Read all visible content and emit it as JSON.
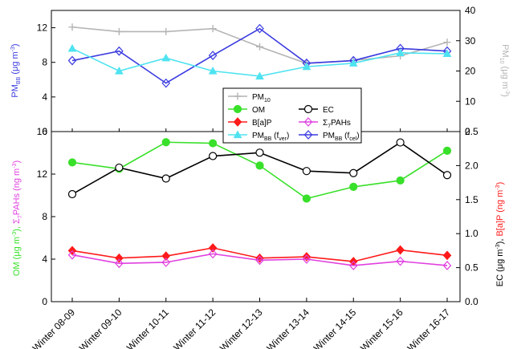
{
  "chart_data": [
    {
      "type": "line",
      "panel": "top",
      "categories": [
        "Winter 08-09",
        "Winter 09-10",
        "Winter 10-11",
        "Winter 11-12",
        "Winter 12-13",
        "Winter 13-14",
        "Winter 14-15",
        "Winter 15-16",
        "Winter 16-17"
      ],
      "left_axis": {
        "label": "PMBB (μg m-3)",
        "label_parts": [
          "PM",
          "BB",
          " (μg m",
          "-3",
          ")"
        ],
        "ylim": [
          0,
          14
        ],
        "ticks": [
          "0",
          "4",
          "8",
          "12"
        ],
        "tick_values": [
          0,
          4,
          8,
          12
        ],
        "color": "#3a3ae0"
      },
      "right_axis": {
        "label": "PM10 (μg m-3)",
        "label_parts": [
          "PM",
          "10",
          " (μg m",
          "-3",
          ")"
        ],
        "ylim": [
          0,
          40
        ],
        "ticks": [
          "0",
          "10",
          "20",
          "30",
          "40"
        ],
        "tick_values": [
          0,
          10,
          20,
          30,
          40
        ],
        "color": "#b4b4b4"
      },
      "series": [
        {
          "name": "PM10",
          "name_parts": [
            "PM",
            "10",
            ""
          ],
          "axis": "right",
          "color": "#b4b4b4",
          "marker": "plus",
          "values": [
            34.5,
            33,
            33,
            34,
            28,
            22.5,
            23.5,
            25,
            29.5
          ]
        },
        {
          "name": "PMBB (fcel)",
          "name_parts": [
            "PM",
            "BB",
            " (f",
            "cel",
            ")"
          ],
          "axis": "left",
          "color": "#3a3ae0",
          "marker": "diamond-open",
          "values": [
            8.2,
            9.3,
            5.6,
            8.8,
            11.9,
            7.9,
            8.2,
            9.6,
            9.3
          ]
        },
        {
          "name": "PMBB (fver)",
          "name_parts": [
            "PM",
            "BB",
            " (f",
            "ver",
            ")"
          ],
          "axis": "left",
          "color": "#4fe3f0",
          "marker": "triangle",
          "values": [
            9.6,
            7.0,
            8.5,
            7.0,
            6.4,
            7.5,
            7.9,
            9.1,
            9.0
          ]
        }
      ]
    },
    {
      "type": "line",
      "panel": "bottom",
      "categories": [
        "Winter 08-09",
        "Winter 09-10",
        "Winter 10-11",
        "Winter 11-12",
        "Winter 12-13",
        "Winter 13-14",
        "Winter 14-15",
        "Winter 15-16",
        "Winter 16-17"
      ],
      "left_axis": {
        "label": "OM (μg m-3), Σ7PAHs (ng m-3)",
        "ylim": [
          0,
          16
        ],
        "ticks": [
          "0",
          "4",
          "8",
          "12",
          "16"
        ],
        "tick_values": [
          0,
          4,
          8,
          12,
          16
        ]
      },
      "right_axis": {
        "label": "EC (μg m-3), B[a]P (ng m-3)",
        "ylim": [
          0,
          2.5
        ],
        "ticks": [
          "0.0",
          "0.5",
          "1.0",
          "1.5",
          "2.0",
          "2.5"
        ],
        "tick_values": [
          0,
          0.5,
          1.0,
          1.5,
          2.0,
          2.5
        ]
      },
      "series": [
        {
          "name": "OM",
          "name_parts": [
            "OM"
          ],
          "axis": "left",
          "color": "#39e02a",
          "marker": "circle",
          "values": [
            13.1,
            12.5,
            15.0,
            14.9,
            12.8,
            9.7,
            10.8,
            11.4,
            14.2
          ]
        },
        {
          "name": "EC",
          "name_parts": [
            "EC"
          ],
          "axis": "right",
          "color": "#000000",
          "marker": "circle-open",
          "values": [
            1.58,
            1.97,
            1.81,
            2.14,
            2.19,
            1.92,
            1.89,
            2.34,
            1.86
          ]
        },
        {
          "name": "B[a]P",
          "name_parts": [
            "B[a]P"
          ],
          "axis": "right",
          "color": "#ff1a1a",
          "marker": "diamond",
          "values": [
            0.75,
            0.64,
            0.67,
            0.79,
            0.64,
            0.66,
            0.59,
            0.76,
            0.68
          ]
        },
        {
          "name": "Σ7PAHs",
          "name_parts": [
            "Σ",
            "7",
            "PAHs"
          ],
          "axis": "left",
          "color": "#e040e0",
          "marker": "diamond-open",
          "values": [
            4.4,
            3.6,
            3.7,
            4.5,
            3.9,
            4.0,
            3.4,
            3.8,
            3.4
          ]
        }
      ]
    }
  ]
}
